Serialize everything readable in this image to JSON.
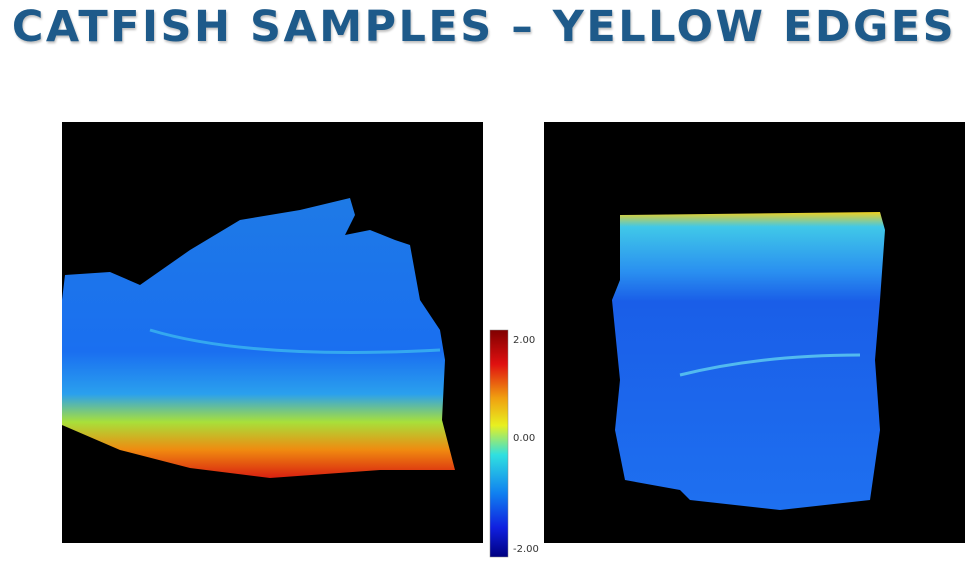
{
  "title": "CATFISH SAMPLES – YELLOW EDGES",
  "colorbar": {
    "labels": [
      "2.00",
      "0.00",
      "-2.00"
    ]
  }
}
